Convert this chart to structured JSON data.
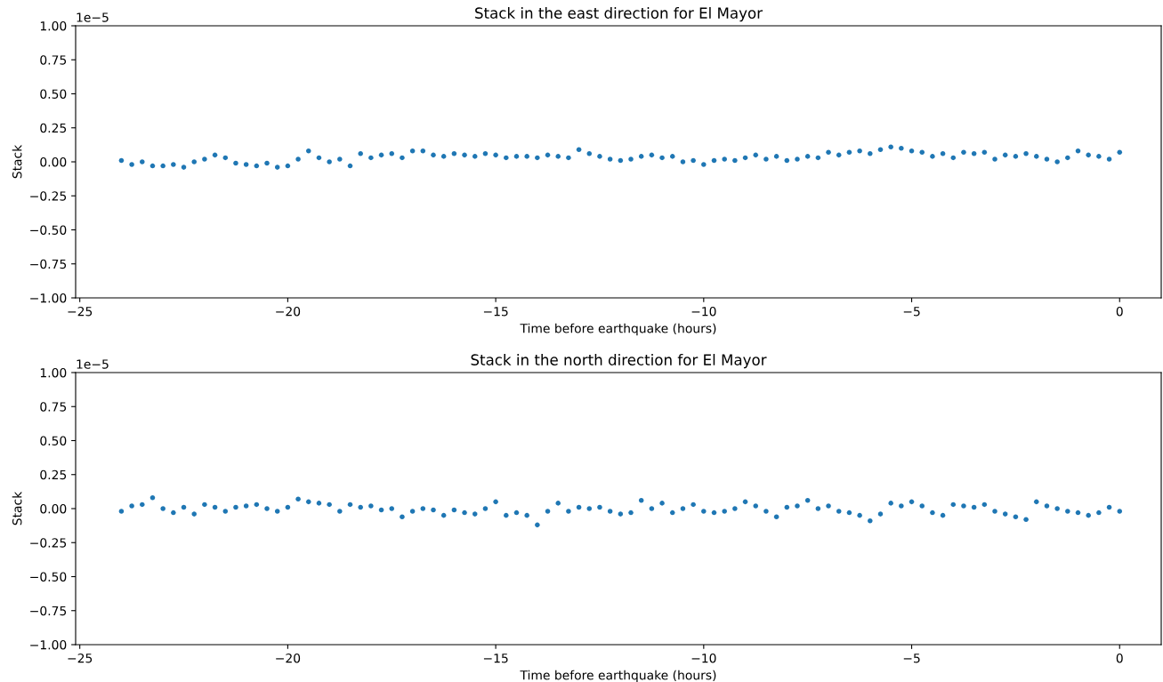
{
  "chart_data": [
    {
      "type": "scatter",
      "title": "Stack in the east direction for El Mayor",
      "xlabel": "Time before earthquake (hours)",
      "ylabel": "Stack",
      "annotations": [
        "1e−5"
      ],
      "xlim": [
        -25.1,
        1.0
      ],
      "xticks": [
        {
          "value": -25,
          "label": "−25"
        },
        {
          "value": -20,
          "label": "−20"
        },
        {
          "value": -15,
          "label": "−15"
        },
        {
          "value": -10,
          "label": "−10"
        },
        {
          "value": -5,
          "label": "−5"
        },
        0
      ],
      "ylim": [
        -1.0,
        1.0
      ],
      "yticks": [
        {
          "value": -1,
          "label": "−1.00"
        },
        {
          "value": -0.75,
          "label": "−0.75"
        },
        {
          "value": -0.5,
          "label": "−0.50"
        },
        {
          "value": -0.25,
          "label": "−0.25"
        },
        {
          "value": 0,
          "label": "0.00"
        },
        {
          "value": 0.25,
          "label": "0.25"
        },
        {
          "value": 0.5,
          "label": "0.50"
        },
        {
          "value": 0.75,
          "label": "0.75"
        },
        {
          "value": 1,
          "label": "1.00"
        }
      ],
      "grid": false,
      "legend": false,
      "marker": "circle",
      "series": [
        {
          "color": "#1f77b4",
          "x": [
            -24,
            -23.75,
            -23.5,
            -23.25,
            -23,
            -22.75,
            -22.5,
            -22.25,
            -22,
            -21.75,
            -21.5,
            -21.25,
            -21,
            -20.75,
            -20.5,
            -20.25,
            -20,
            -19.75,
            -19.5,
            -19.25,
            -19,
            -18.75,
            -18.5,
            -18.25,
            -18,
            -17.75,
            -17.5,
            -17.25,
            -17,
            -16.75,
            -16.5,
            -16.25,
            -16,
            -15.75,
            -15.5,
            -15.25,
            -15,
            -14.75,
            -14.5,
            -14.25,
            -14,
            -13.75,
            -13.5,
            -13.25,
            -13,
            -12.75,
            -12.5,
            -12.25,
            -12,
            -11.75,
            -11.5,
            -11.25,
            -11,
            -10.75,
            -10.5,
            -10.25,
            -10,
            -9.75,
            -9.5,
            -9.25,
            -9,
            -8.75,
            -8.5,
            -8.25,
            -8,
            -7.75,
            -7.5,
            -7.25,
            -7,
            -6.75,
            -6.5,
            -6.25,
            -6,
            -5.75,
            -5.5,
            -5.25,
            -5,
            -4.75,
            -4.5,
            -4.25,
            -4,
            -3.75,
            -3.5,
            -3.25,
            -3,
            -2.75,
            -2.5,
            -2.25,
            -2,
            -1.75,
            -1.5,
            -1.25,
            -1,
            -0.75,
            -0.5,
            -0.25,
            0
          ],
          "values": [
            0.01,
            -0.02,
            0.0,
            -0.03,
            -0.03,
            -0.02,
            -0.04,
            0.0,
            0.02,
            0.05,
            0.03,
            -0.01,
            -0.02,
            -0.03,
            -0.01,
            -0.04,
            -0.03,
            0.02,
            0.08,
            0.03,
            0.0,
            0.02,
            -0.03,
            0.06,
            0.03,
            0.05,
            0.06,
            0.03,
            0.08,
            0.08,
            0.05,
            0.04,
            0.06,
            0.05,
            0.04,
            0.06,
            0.05,
            0.03,
            0.04,
            0.04,
            0.03,
            0.05,
            0.04,
            0.03,
            0.09,
            0.06,
            0.04,
            0.02,
            0.01,
            0.02,
            0.04,
            0.05,
            0.03,
            0.04,
            0.0,
            0.01,
            -0.02,
            0.01,
            0.02,
            0.01,
            0.03,
            0.05,
            0.02,
            0.04,
            0.01,
            0.02,
            0.04,
            0.03,
            0.07,
            0.05,
            0.07,
            0.08,
            0.06,
            0.09,
            0.11,
            0.1,
            0.08,
            0.07,
            0.04,
            0.06,
            0.03,
            0.07,
            0.06,
            0.07,
            0.02,
            0.05,
            0.04,
            0.06,
            0.04,
            0.02,
            0.0,
            0.03,
            0.08,
            0.05,
            0.04,
            0.02,
            0.07
          ]
        }
      ]
    },
    {
      "type": "scatter",
      "title": "Stack in the north direction for El Mayor",
      "xlabel": "Time before earthquake (hours)",
      "ylabel": "Stack",
      "annotations": [
        "1e−5"
      ],
      "xlim": [
        -25.1,
        1.0
      ],
      "xticks": [
        {
          "value": -25,
          "label": "−25"
        },
        {
          "value": -20,
          "label": "−20"
        },
        {
          "value": -15,
          "label": "−15"
        },
        {
          "value": -10,
          "label": "−10"
        },
        {
          "value": -5,
          "label": "−5"
        },
        0
      ],
      "ylim": [
        -1.0,
        1.0
      ],
      "yticks": [
        {
          "value": -1,
          "label": "−1.00"
        },
        {
          "value": -0.75,
          "label": "−0.75"
        },
        {
          "value": -0.5,
          "label": "−0.50"
        },
        {
          "value": -0.25,
          "label": "−0.25"
        },
        {
          "value": 0,
          "label": "0.00"
        },
        {
          "value": 0.25,
          "label": "0.25"
        },
        {
          "value": 0.5,
          "label": "0.50"
        },
        {
          "value": 0.75,
          "label": "0.75"
        },
        {
          "value": 1,
          "label": "1.00"
        }
      ],
      "grid": false,
      "legend": false,
      "marker": "circle",
      "series": [
        {
          "color": "#1f77b4",
          "x": [
            -24,
            -23.75,
            -23.5,
            -23.25,
            -23,
            -22.75,
            -22.5,
            -22.25,
            -22,
            -21.75,
            -21.5,
            -21.25,
            -21,
            -20.75,
            -20.5,
            -20.25,
            -20,
            -19.75,
            -19.5,
            -19.25,
            -19,
            -18.75,
            -18.5,
            -18.25,
            -18,
            -17.75,
            -17.5,
            -17.25,
            -17,
            -16.75,
            -16.5,
            -16.25,
            -16,
            -15.75,
            -15.5,
            -15.25,
            -15,
            -14.75,
            -14.5,
            -14.25,
            -14,
            -13.75,
            -13.5,
            -13.25,
            -13,
            -12.75,
            -12.5,
            -12.25,
            -12,
            -11.75,
            -11.5,
            -11.25,
            -11,
            -10.75,
            -10.5,
            -10.25,
            -10,
            -9.75,
            -9.5,
            -9.25,
            -9,
            -8.75,
            -8.5,
            -8.25,
            -8,
            -7.75,
            -7.5,
            -7.25,
            -7,
            -6.75,
            -6.5,
            -6.25,
            -6,
            -5.75,
            -5.5,
            -5.25,
            -5,
            -4.75,
            -4.5,
            -4.25,
            -4,
            -3.75,
            -3.5,
            -3.25,
            -3,
            -2.75,
            -2.5,
            -2.25,
            -2,
            -1.75,
            -1.5,
            -1.25,
            -1,
            -0.75,
            -0.5,
            -0.25,
            0
          ],
          "values": [
            -0.02,
            0.02,
            0.03,
            0.08,
            0.0,
            -0.03,
            0.01,
            -0.04,
            0.03,
            0.01,
            -0.02,
            0.01,
            0.02,
            0.03,
            0.0,
            -0.02,
            0.01,
            0.07,
            0.05,
            0.04,
            0.03,
            -0.02,
            0.03,
            0.01,
            0.02,
            -0.01,
            0.0,
            -0.06,
            -0.02,
            0.0,
            -0.01,
            -0.05,
            -0.01,
            -0.03,
            -0.04,
            0.0,
            0.05,
            -0.05,
            -0.03,
            -0.05,
            -0.12,
            -0.02,
            0.04,
            -0.02,
            0.01,
            0.0,
            0.01,
            -0.02,
            -0.04,
            -0.03,
            0.06,
            0.0,
            0.04,
            -0.03,
            0.0,
            0.03,
            -0.02,
            -0.03,
            -0.02,
            0.0,
            0.05,
            0.02,
            -0.02,
            -0.06,
            0.01,
            0.02,
            0.06,
            0.0,
            0.02,
            -0.02,
            -0.03,
            -0.05,
            -0.09,
            -0.04,
            0.04,
            0.02,
            0.05,
            0.02,
            -0.03,
            -0.05,
            0.03,
            0.02,
            0.01,
            0.03,
            -0.02,
            -0.04,
            -0.06,
            -0.08,
            0.05,
            0.02,
            0.0,
            -0.02,
            -0.03,
            -0.05,
            -0.03,
            0.01,
            -0.02
          ]
        }
      ]
    }
  ]
}
